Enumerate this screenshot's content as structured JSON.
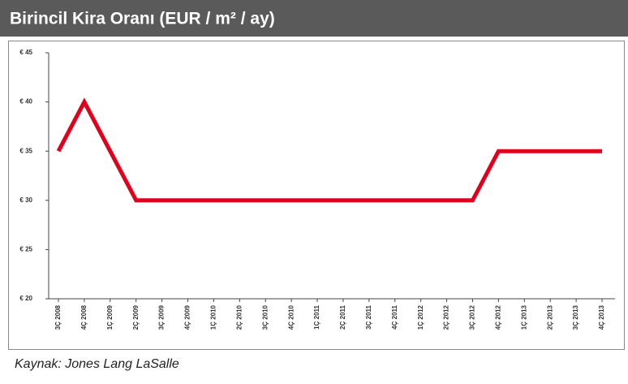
{
  "chart_data": {
    "type": "line",
    "title": "Birincil Kira Oranı (EUR / m² / ay)",
    "categories": [
      "3Ç 2008",
      "4Ç 2008",
      "1Ç 2009",
      "2Ç 2009",
      "3Ç 2009",
      "4Ç 2009",
      "1Ç 2010",
      "2Ç 2010",
      "3Ç 2010",
      "4Ç 2010",
      "1Ç 2011",
      "2Ç 2011",
      "3Ç 2011",
      "4Ç 2011",
      "1Ç 2012",
      "2Ç 2012",
      "3Ç 2012",
      "4Ç 2012",
      "1Ç 2013",
      "2Ç 2013",
      "3Ç 2013",
      "4Ç 2013"
    ],
    "series": [
      {
        "name": "Birincil Kira Oranı",
        "color": "#e0001b",
        "values": [
          35,
          40,
          35,
          30,
          30,
          30,
          30,
          30,
          30,
          30,
          30,
          30,
          30,
          30,
          30,
          30,
          30,
          35,
          35,
          35,
          35,
          35
        ]
      }
    ],
    "ylim": [
      20,
      45
    ],
    "yticks": [
      {
        "value": 20,
        "label": "€ 20"
      },
      {
        "value": 25,
        "label": "€ 25"
      },
      {
        "value": 30,
        "label": "€ 30"
      },
      {
        "value": 35,
        "label": "€ 35"
      },
      {
        "value": 40,
        "label": "€ 40"
      },
      {
        "value": 45,
        "label": "€ 45"
      }
    ],
    "source": "Kaynak: Jones Lang LaSalle"
  }
}
